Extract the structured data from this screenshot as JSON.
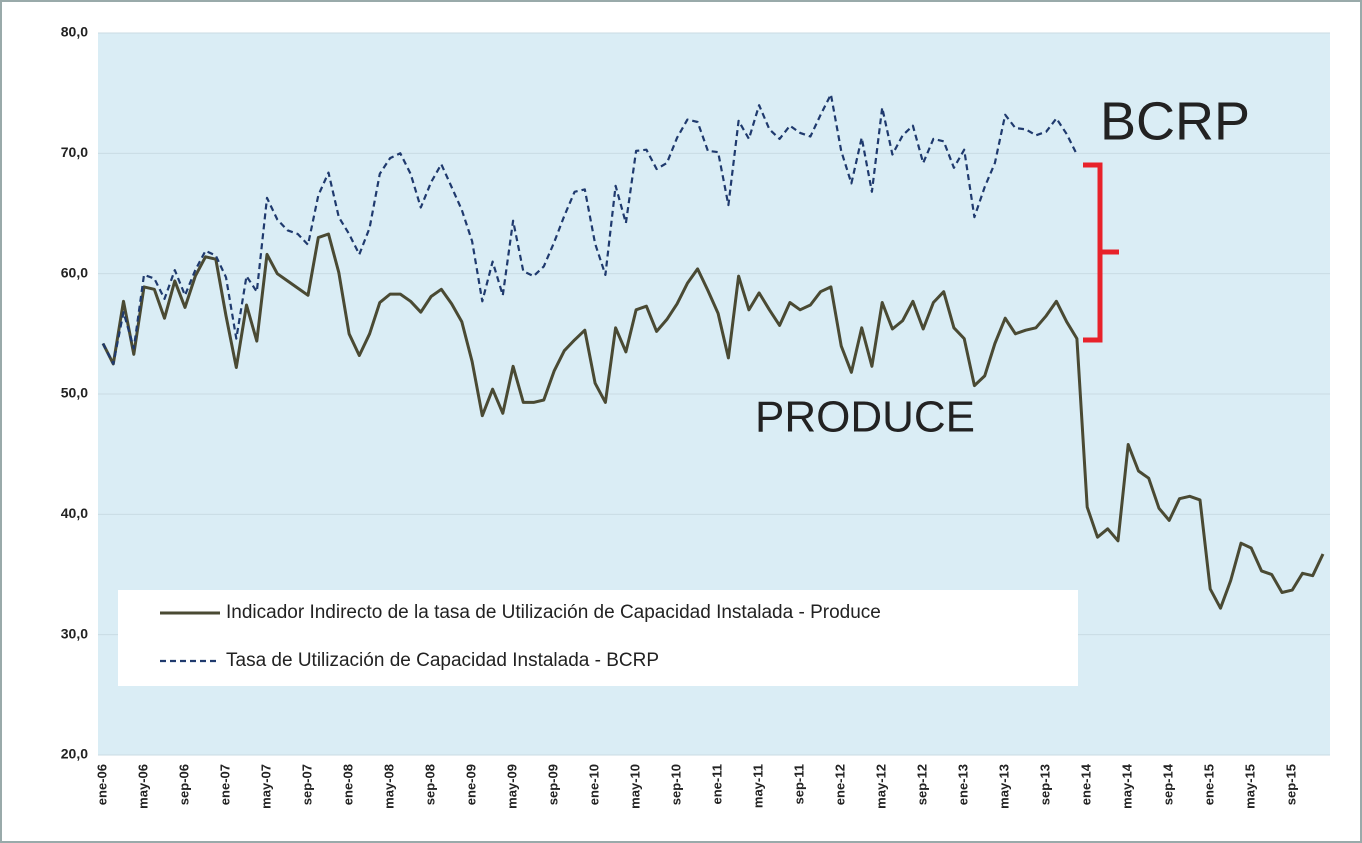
{
  "chart_data": {
    "type": "line",
    "categories": [
      "ene-06",
      null,
      null,
      null,
      "may-06",
      null,
      null,
      null,
      "sep-06",
      null,
      null,
      null,
      "ene-07",
      null,
      null,
      null,
      "may-07",
      null,
      null,
      null,
      "sep-07",
      null,
      null,
      null,
      "ene-08",
      null,
      null,
      null,
      "may-08",
      null,
      null,
      null,
      "sep-08",
      null,
      null,
      null,
      "ene-09",
      null,
      null,
      null,
      "may-09",
      null,
      null,
      null,
      "sep-09",
      null,
      null,
      null,
      "ene-10",
      null,
      null,
      null,
      "may-10",
      null,
      null,
      null,
      "sep-10",
      null,
      null,
      null,
      "ene-11",
      null,
      null,
      null,
      "may-11",
      null,
      null,
      null,
      "sep-11",
      null,
      null,
      null,
      "ene-12",
      null,
      null,
      null,
      "may-12",
      null,
      null,
      null,
      "sep-12",
      null,
      null,
      null,
      "ene-13",
      null,
      null,
      null,
      "may-13",
      null,
      null,
      null,
      "sep-13",
      null,
      null,
      null,
      "ene-14",
      null,
      null,
      null,
      "may-14",
      null,
      null,
      null,
      "sep-14",
      null,
      null,
      null,
      "ene-15",
      null,
      null,
      null,
      "may-15",
      null,
      null,
      null,
      "sep-15",
      null,
      null,
      null
    ],
    "series": [
      {
        "name": "Indicador Indirecto de la tasa de Utilización de Capacidad Instalada - Produce",
        "color": "#4a4a33",
        "dashed": false,
        "values": [
          54.2,
          52.5,
          57.7,
          53.3,
          58.9,
          58.7,
          56.3,
          59.4,
          57.2,
          59.8,
          61.4,
          61.2,
          56.5,
          52.2,
          57.4,
          54.4,
          61.6,
          60.0,
          59.4,
          58.8,
          58.2,
          63.0,
          63.3,
          60.1,
          55.0,
          53.2,
          55.0,
          57.6,
          58.3,
          58.3,
          57.7,
          56.8,
          58.1,
          58.7,
          57.5,
          56.0,
          52.7,
          48.2,
          50.4,
          48.4,
          52.3,
          49.3,
          49.3,
          49.5,
          51.9,
          53.6,
          54.5,
          55.3,
          50.9,
          49.3,
          55.5,
          53.5,
          57.0,
          57.3,
          55.2,
          56.2,
          57.5,
          59.2,
          60.4,
          58.6,
          56.7,
          53.0,
          59.8,
          57.0,
          58.4,
          57.0,
          55.7,
          57.6,
          57.0,
          57.4,
          58.5,
          58.9,
          54.0,
          51.8,
          55.5,
          52.3,
          57.6,
          55.4,
          56.1,
          57.7,
          55.4,
          57.6,
          58.5,
          55.5,
          54.6,
          50.7,
          51.5,
          54.2,
          56.3,
          55.0,
          55.3,
          55.5,
          56.5,
          57.7,
          56.0,
          54.6,
          40.6,
          38.1,
          38.8,
          37.8,
          45.8,
          43.6,
          43.0,
          40.5,
          39.5,
          41.3,
          41.5,
          41.2,
          33.8,
          32.2,
          34.5,
          37.6,
          37.2,
          35.3,
          35.0,
          33.5,
          33.7,
          35.1,
          34.9,
          36.7
        ]
      },
      {
        "name": "Tasa de Utilización de Capacidad Instalada - BCRP",
        "color": "#1f3a6e",
        "dashed": true,
        "values": [
          54.2,
          52.5,
          56.8,
          53.8,
          59.9,
          59.6,
          57.9,
          60.3,
          58.2,
          60.3,
          61.9,
          61.5,
          59.7,
          54.6,
          59.8,
          58.5,
          66.3,
          64.5,
          63.6,
          63.3,
          62.4,
          66.5,
          68.4,
          64.7,
          63.3,
          61.6,
          63.8,
          68.3,
          69.6,
          70.0,
          68.3,
          65.5,
          67.6,
          69.1,
          67.2,
          65.3,
          62.7,
          57.7,
          61.0,
          58.2,
          64.4,
          60.2,
          59.8,
          60.6,
          62.6,
          64.8,
          66.8,
          67.0,
          62.5,
          59.9,
          67.3,
          64.2,
          70.2,
          70.3,
          68.7,
          69.2,
          71.3,
          72.8,
          72.6,
          70.2,
          70.1,
          65.7,
          72.7,
          71.2,
          74.0,
          72.0,
          71.2,
          72.3,
          71.7,
          71.4,
          73.2,
          74.9,
          70.2,
          67.5,
          71.3,
          66.8,
          73.8,
          69.9,
          71.5,
          72.3,
          69.2,
          71.2,
          71.0,
          68.8,
          70.3,
          64.7,
          67.2,
          69.2,
          73.2,
          72.1,
          72.0,
          71.5,
          71.8,
          72.9,
          71.6,
          69.9,
          null,
          null,
          null,
          null,
          null,
          null,
          null,
          null,
          null,
          null,
          null,
          null,
          null,
          null,
          null,
          null,
          null,
          null,
          null,
          null,
          null,
          null,
          null,
          null
        ]
      }
    ],
    "ylim": [
      20,
      80
    ],
    "yticks": [
      {
        "value": 20,
        "label": "20,0"
      },
      {
        "value": 30,
        "label": "30,0"
      },
      {
        "value": 40,
        "label": "40,0"
      },
      {
        "value": 50,
        "label": "50,0"
      },
      {
        "value": 60,
        "label": "60,0"
      },
      {
        "value": 70,
        "label": "70,0"
      },
      {
        "value": 80,
        "label": "80,0"
      }
    ],
    "grid": true,
    "annotations": [
      "BCRP",
      "PRODUCE"
    ]
  }
}
